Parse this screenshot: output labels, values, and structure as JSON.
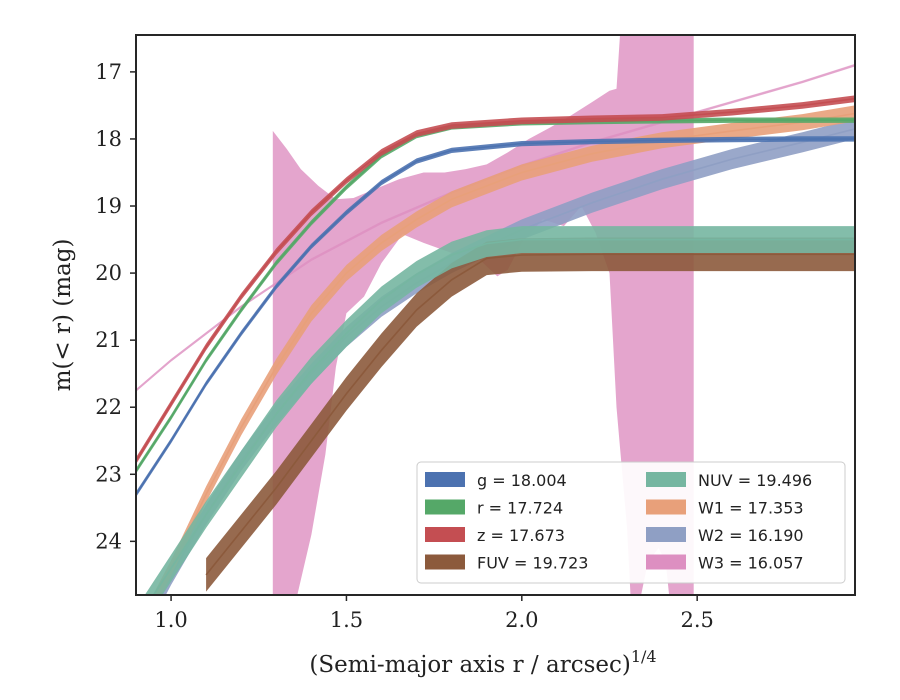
{
  "chart_data": {
    "type": "line",
    "xlabel": "(Semi-major axis r / arcsec)",
    "xlabel_superscript": "1/4",
    "ylabel": "m(< r) (mag)",
    "xlim": [
      0.9,
      2.95
    ],
    "ylim": [
      24.8,
      16.45
    ],
    "y_inverted": true,
    "xticks": [
      1.0,
      1.5,
      2.0,
      2.5
    ],
    "xtick_labels": [
      "1.0",
      "1.5",
      "2.0",
      "2.5"
    ],
    "yticks": [
      17,
      18,
      19,
      20,
      21,
      22,
      23,
      24
    ],
    "ytick_labels": [
      "17",
      "18",
      "19",
      "20",
      "21",
      "22",
      "23",
      "24"
    ],
    "grid": false,
    "legend_position": "lower-right",
    "series": [
      {
        "name": "g",
        "legend_label": "g = 18.004",
        "color": "#4c72b0",
        "x": [
          0.9,
          1.0,
          1.1,
          1.2,
          1.3,
          1.4,
          1.5,
          1.6,
          1.7,
          1.8,
          2.0,
          2.2,
          2.4,
          2.6,
          2.8,
          2.95
        ],
        "y": [
          23.3,
          22.5,
          21.65,
          20.9,
          20.2,
          19.6,
          19.1,
          18.65,
          18.33,
          18.17,
          18.07,
          18.04,
          18.02,
          18.01,
          18.0,
          18.0
        ],
        "band": 0.04
      },
      {
        "name": "r",
        "legend_label": "r = 17.724",
        "color": "#55a868",
        "x": [
          0.9,
          1.0,
          1.1,
          1.2,
          1.3,
          1.4,
          1.5,
          1.6,
          1.7,
          1.8,
          2.0,
          2.2,
          2.4,
          2.6,
          2.8,
          2.95
        ],
        "y": [
          22.95,
          22.15,
          21.3,
          20.55,
          19.85,
          19.25,
          18.72,
          18.25,
          17.95,
          17.82,
          17.76,
          17.74,
          17.73,
          17.72,
          17.72,
          17.72
        ],
        "band": 0.04
      },
      {
        "name": "z",
        "legend_label": "z = 17.673",
        "color": "#c44e52",
        "x": [
          0.9,
          1.0,
          1.1,
          1.2,
          1.3,
          1.4,
          1.5,
          1.6,
          1.7,
          1.8,
          2.0,
          2.2,
          2.4,
          2.6,
          2.8,
          2.95
        ],
        "y": [
          22.8,
          21.95,
          21.1,
          20.35,
          19.68,
          19.1,
          18.62,
          18.2,
          17.92,
          17.8,
          17.73,
          17.7,
          17.68,
          17.6,
          17.5,
          17.4
        ],
        "band": 0.05
      },
      {
        "name": "FUV",
        "legend_label": "FUV = 19.723",
        "color": "#8c5a3c",
        "x": [
          1.1,
          1.2,
          1.3,
          1.4,
          1.5,
          1.6,
          1.7,
          1.8,
          1.9,
          2.0,
          2.2,
          2.4,
          2.6,
          2.8,
          2.95
        ],
        "y": [
          24.5,
          23.85,
          23.2,
          22.5,
          21.8,
          21.15,
          20.55,
          20.1,
          19.78,
          19.73,
          19.72,
          19.72,
          19.72,
          19.72,
          19.72
        ],
        "band": 0.25
      },
      {
        "name": "NUV",
        "legend_label": "NUV = 19.496",
        "color": "#76b6a1",
        "x": [
          0.9,
          1.0,
          1.1,
          1.2,
          1.3,
          1.4,
          1.5,
          1.6,
          1.7,
          1.8,
          1.9,
          2.0,
          2.2,
          2.4,
          2.6,
          2.8,
          2.95
        ],
        "y": [
          25.2,
          24.4,
          23.6,
          22.85,
          22.1,
          21.45,
          20.9,
          20.4,
          20.02,
          19.73,
          19.56,
          19.5,
          19.5,
          19.5,
          19.5,
          19.5,
          19.5
        ],
        "band": 0.2
      },
      {
        "name": "W1",
        "legend_label": "W1 = 17.353",
        "color": "#e8a07a",
        "x": [
          0.9,
          1.0,
          1.1,
          1.2,
          1.3,
          1.4,
          1.5,
          1.6,
          1.7,
          1.8,
          2.0,
          2.2,
          2.4,
          2.6,
          2.8,
          2.95
        ],
        "y": [
          25.4,
          24.4,
          23.3,
          22.3,
          21.4,
          20.6,
          20.0,
          19.55,
          19.2,
          18.9,
          18.5,
          18.22,
          18.02,
          17.88,
          17.75,
          17.62
        ],
        "band": 0.12
      },
      {
        "name": "W2",
        "legend_label": "W2 = 16.190",
        "color": "#8f9fc4",
        "x": [
          0.9,
          1.0,
          1.1,
          1.2,
          1.3,
          1.4,
          1.5,
          1.6,
          1.7,
          1.8,
          2.0,
          2.2,
          2.4,
          2.6,
          2.8,
          2.95
        ],
        "y": [
          25.5,
          24.5,
          23.6,
          22.8,
          22.1,
          21.5,
          20.95,
          20.5,
          20.15,
          19.85,
          19.35,
          18.95,
          18.6,
          18.3,
          18.05,
          17.85
        ],
        "band": 0.15
      },
      {
        "name": "W3",
        "legend_label": "W3 = 16.057",
        "color": "#dd8fc1",
        "x": [
          0.9,
          1.0,
          1.2,
          1.4,
          1.6,
          1.8,
          2.0,
          2.2,
          2.4,
          2.6,
          2.8,
          2.95
        ],
        "y": [
          21.75,
          21.3,
          20.5,
          19.8,
          19.25,
          18.8,
          18.4,
          18.05,
          17.75,
          17.45,
          17.15,
          16.9
        ],
        "band": 0.02
      }
    ],
    "w3_envelope": {
      "upper": [
        [
          1.29,
          17.88
        ],
        [
          1.33,
          18.15
        ],
        [
          1.37,
          18.45
        ],
        [
          1.42,
          18.7
        ],
        [
          1.47,
          18.9
        ],
        [
          1.52,
          18.88
        ],
        [
          1.58,
          18.75
        ],
        [
          1.65,
          18.6
        ],
        [
          1.72,
          18.5
        ],
        [
          1.78,
          18.5
        ],
        [
          1.84,
          18.45
        ],
        [
          1.9,
          18.38
        ],
        [
          1.96,
          18.2
        ],
        [
          2.02,
          18.0
        ],
        [
          2.08,
          17.83
        ],
        [
          2.14,
          17.65
        ],
        [
          2.2,
          17.45
        ],
        [
          2.25,
          17.28
        ],
        [
          2.27,
          17.25
        ],
        [
          2.28,
          16.45
        ],
        [
          2.49,
          16.45
        ]
      ],
      "lower": [
        [
          2.49,
          24.8
        ],
        [
          2.42,
          24.8
        ],
        [
          2.41,
          24.3
        ],
        [
          2.39,
          24.1
        ],
        [
          2.36,
          24.3
        ],
        [
          2.34,
          24.8
        ],
        [
          2.31,
          24.8
        ],
        [
          2.3,
          23.8
        ],
        [
          2.27,
          22.0
        ],
        [
          2.25,
          20.0
        ],
        [
          2.21,
          19.4
        ],
        [
          2.17,
          19.0
        ],
        [
          2.12,
          19.3
        ],
        [
          2.06,
          19.2
        ],
        [
          2.0,
          19.55
        ],
        [
          1.96,
          19.95
        ],
        [
          1.93,
          20.05
        ],
        [
          1.88,
          19.8
        ],
        [
          1.8,
          19.7
        ],
        [
          1.72,
          19.55
        ],
        [
          1.66,
          19.42
        ],
        [
          1.6,
          19.85
        ],
        [
          1.55,
          20.35
        ],
        [
          1.5,
          20.6
        ],
        [
          1.47,
          21.4
        ],
        [
          1.44,
          22.7
        ],
        [
          1.4,
          23.9
        ],
        [
          1.36,
          24.8
        ],
        [
          1.29,
          24.8
        ]
      ]
    }
  }
}
